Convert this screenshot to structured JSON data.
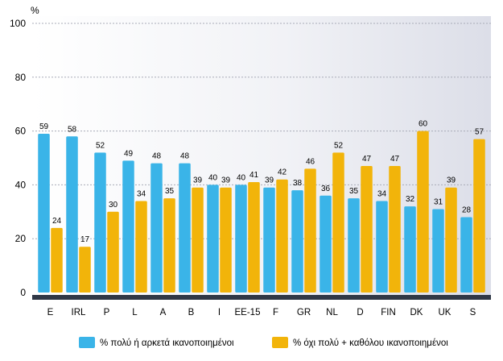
{
  "chart_data": {
    "type": "bar",
    "title": "",
    "xlabel": "",
    "ylabel": "%",
    "ylim": [
      0,
      100
    ],
    "yticks": [
      0,
      20,
      40,
      60,
      80,
      100
    ],
    "grid": true,
    "legend_position": "bottom",
    "categories": [
      "E",
      "IRL",
      "P",
      "L",
      "A",
      "B",
      "I",
      "EE-15",
      "F",
      "GR",
      "NL",
      "D",
      "FIN",
      "DK",
      "UK",
      "S"
    ],
    "series": [
      {
        "name": "% πολύ ή αρκετά ικανοποιημένοι",
        "color": "#3ab4e8",
        "values": [
          59,
          58,
          52,
          49,
          48,
          48,
          40,
          40,
          39,
          38,
          36,
          35,
          34,
          32,
          31,
          28
        ]
      },
      {
        "name": "% όχι πολύ + καθόλου ικανοποιημένοι",
        "color": "#f2b40a",
        "values": [
          24,
          17,
          30,
          34,
          35,
          39,
          39,
          41,
          42,
          46,
          52,
          47,
          47,
          60,
          39,
          57
        ]
      }
    ]
  }
}
